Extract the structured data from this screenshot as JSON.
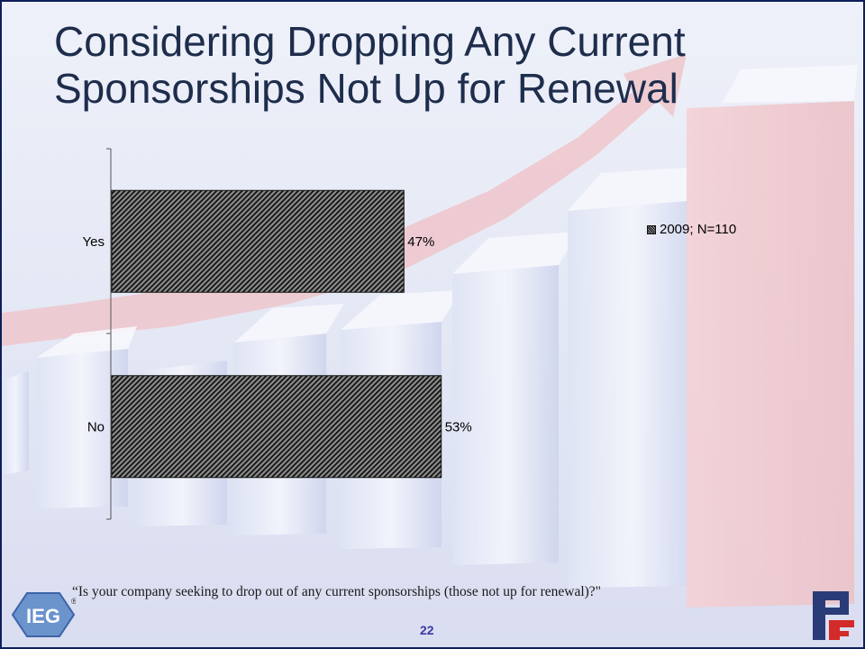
{
  "title": "Considering Dropping Any Current Sponsorships Not Up for Renewal",
  "question": "“Is your company seeking to drop out of any current sponsorships (those not up for renewal)?\"",
  "page_number": "22",
  "logos": {
    "left": "IEG",
    "left_mark": "®",
    "right": "PF"
  },
  "chart_data": {
    "type": "bar",
    "orientation": "horizontal",
    "categories": [
      "Yes",
      "No"
    ],
    "series": [
      {
        "name": "2009; N=110",
        "values": [
          47,
          53
        ],
        "labels": [
          "47%",
          "53%"
        ]
      }
    ],
    "xlim": [
      0,
      100
    ],
    "legend_position": "right",
    "grid": false,
    "bar_fill": "diagonal-hatch",
    "bar_color": "#1a1a1a"
  }
}
